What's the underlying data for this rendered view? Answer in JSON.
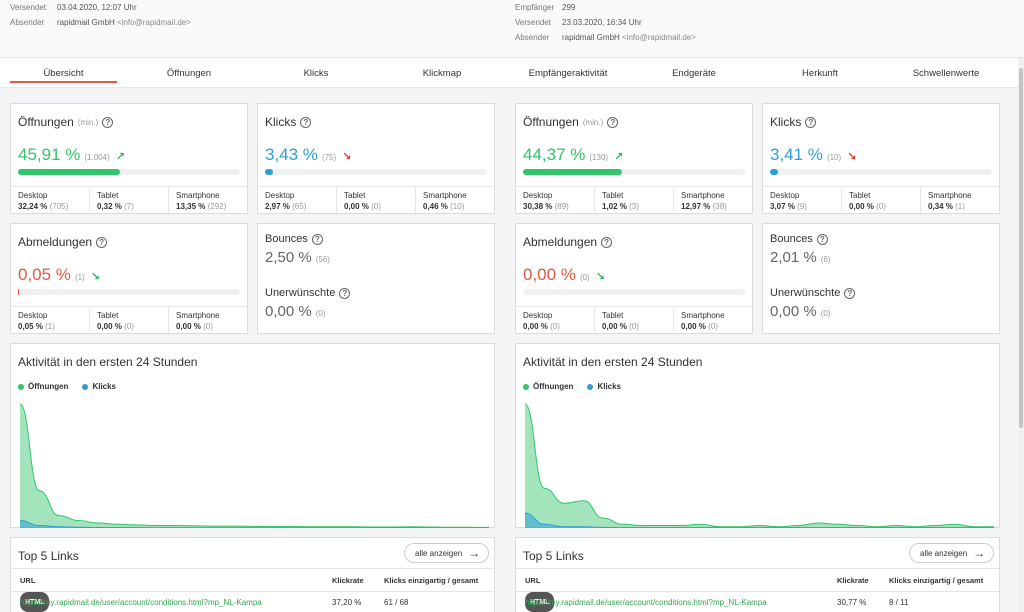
{
  "header": {
    "left": {
      "versendet_label": "Versendet",
      "versendet_value": "03.04.2020, 12:07 Uhr",
      "absender_label": "Absender",
      "absender_name": "rapidmail GmbH",
      "absender_email": "<info@rapidmail.de>"
    },
    "right": {
      "empfaenger_label": "Empfänger",
      "empfaenger_value": "299",
      "versendet_label": "Versendet",
      "versendet_value": "23.03.2020, 16:34 Uhr",
      "absender_label": "Absender",
      "absender_name": "rapidmail GmbH",
      "absender_email": "<info@rapidmail.de>"
    }
  },
  "tabs": [
    {
      "label": "Übersicht",
      "active": true
    },
    {
      "label": "Öffnungen"
    },
    {
      "label": "Klicks"
    },
    {
      "label": "Klickmap"
    },
    {
      "label": "Empfängeraktivität"
    },
    {
      "label": "Endgeräte"
    },
    {
      "label": "Herkunft"
    },
    {
      "label": "Schwellenwerte"
    }
  ],
  "colors": {
    "open": "#32c46a",
    "click": "#2e9fd6",
    "unsub": "#e9563e",
    "accent": "#e2574c"
  },
  "icons": {
    "help": "question-circle-icon",
    "up": "arrow-up-right-icon",
    "down": "arrow-down-right-icon",
    "button": "arrow-right-icon"
  },
  "left": {
    "oeffnungen": {
      "title": "Öffnungen",
      "min": "(min.)",
      "value": "45,91 %",
      "count": "(1.004)",
      "trend": "↗",
      "bar_fraction": 0.4591,
      "devices": [
        {
          "label": "Desktop",
          "value": "32,24 %",
          "count": "(705)"
        },
        {
          "label": "Tablet",
          "value": "0,32 %",
          "count": "(7)"
        },
        {
          "label": "Smartphone",
          "value": "13,35 %",
          "count": "(292)"
        }
      ]
    },
    "klicks": {
      "title": "Klicks",
      "value": "3,43 %",
      "count": "(75)",
      "trend": "↘",
      "bar_fraction": 0.0343,
      "devices": [
        {
          "label": "Desktop",
          "value": "2,97 %",
          "count": "(65)"
        },
        {
          "label": "Tablet",
          "value": "0,00 %",
          "count": "(0)"
        },
        {
          "label": "Smartphone",
          "value": "0,46 %",
          "count": "(10)"
        }
      ]
    },
    "abmeldungen": {
      "title": "Abmeldungen",
      "value": "0,05 %",
      "count": "(1)",
      "trend": "↘",
      "bar_fraction": 0.0005,
      "devices": [
        {
          "label": "Desktop",
          "value": "0,05 %",
          "count": "(1)"
        },
        {
          "label": "Tablet",
          "value": "0,00 %",
          "count": "(0)"
        },
        {
          "label": "Smartphone",
          "value": "0,00 %",
          "count": "(0)"
        }
      ]
    },
    "bounces": {
      "title": "Bounces",
      "value": "2,50 %",
      "count": "(56)"
    },
    "unerwuenschte": {
      "title": "Unerwünschte",
      "value": "0,00 %",
      "count": "(0)"
    },
    "aktivitaet": {
      "title": "Aktivität in den ersten 24 Stunden",
      "legend_open": "Öffnungen",
      "legend_click": "Klicks"
    },
    "links": {
      "title": "Top 5 Links",
      "button": "alle anzeigen",
      "headers": {
        "url": "URL",
        "rate": "Klickrate",
        "clicks": "Klicks einzigartig / gesamt"
      },
      "rows": [
        {
          "type": "HTML",
          "url": "https://my.rapidmail.de/user/account/conditions.html?mp_NL-Kampa",
          "rate": "37,20 %",
          "clicks": "61 / 68"
        }
      ]
    }
  },
  "right": {
    "oeffnungen": {
      "title": "Öffnungen",
      "min": "(min.)",
      "value": "44,37 %",
      "count": "(130)",
      "trend": "↗",
      "bar_fraction": 0.4437,
      "devices": [
        {
          "label": "Desktop",
          "value": "30,38 %",
          "count": "(89)"
        },
        {
          "label": "Tablet",
          "value": "1,02 %",
          "count": "(3)"
        },
        {
          "label": "Smartphone",
          "value": "12,97 %",
          "count": "(38)"
        }
      ]
    },
    "klicks": {
      "title": "Klicks",
      "value": "3,41 %",
      "count": "(10)",
      "trend": "↘",
      "bar_fraction": 0.0341,
      "devices": [
        {
          "label": "Desktop",
          "value": "3,07 %",
          "count": "(9)"
        },
        {
          "label": "Tablet",
          "value": "0,00 %",
          "count": "(0)"
        },
        {
          "label": "Smartphone",
          "value": "0,34 %",
          "count": "(1)"
        }
      ]
    },
    "abmeldungen": {
      "title": "Abmeldungen",
      "value": "0,00 %",
      "count": "(0)",
      "trend": "↘",
      "bar_fraction": 0.0,
      "devices": [
        {
          "label": "Desktop",
          "value": "0,00 %",
          "count": "(0)"
        },
        {
          "label": "Tablet",
          "value": "0,00 %",
          "count": "(0)"
        },
        {
          "label": "Smartphone",
          "value": "0,00 %",
          "count": "(0)"
        }
      ]
    },
    "bounces": {
      "title": "Bounces",
      "value": "2,01 %",
      "count": "(6)"
    },
    "unerwuenschte": {
      "title": "Unerwünschte",
      "value": "0,00 %",
      "count": "(0)"
    },
    "aktivitaet": {
      "title": "Aktivität in den ersten 24 Stunden",
      "legend_open": "Öffnungen",
      "legend_click": "Klicks"
    },
    "links": {
      "title": "Top 5 Links",
      "button": "alle anzeigen",
      "headers": {
        "url": "URL",
        "rate": "Klickrate",
        "clicks": "Klicks einzigartig / gesamt"
      },
      "rows": [
        {
          "type": "HTML",
          "url": "https://my.rapidmail.de/user/account/conditions.html?mp_NL-Kampa",
          "rate": "30,77 %",
          "clicks": "8 / 11"
        }
      ]
    }
  },
  "chart_data": [
    {
      "type": "area",
      "x": [
        0,
        1,
        2,
        3,
        4,
        5,
        6,
        7,
        8,
        9,
        10,
        11,
        12,
        13,
        14,
        15,
        16,
        17,
        18,
        19,
        20,
        21,
        22,
        23,
        24
      ],
      "series": [
        {
          "name": "Öffnungen",
          "values": [
            100,
            30,
            10,
            6,
            4,
            3,
            2.5,
            2,
            2,
            1.8,
            1.5,
            1.5,
            1.3,
            1.2,
            1.2,
            1,
            1,
            1,
            0.8,
            0.8,
            1,
            0.8,
            0.6,
            0.6,
            0.5
          ]
        },
        {
          "name": "Klicks",
          "values": [
            6,
            2,
            1,
            0.6,
            0.4,
            0.3,
            0.3,
            0.2,
            0.2,
            0.2,
            0.2,
            0.2,
            0.2,
            0.2,
            0.2,
            0.2,
            0.2,
            0.2,
            0.2,
            0.2,
            0.2,
            0.2,
            0.2,
            0.2,
            0.2
          ]
        }
      ]
    },
    {
      "type": "area",
      "x": [
        0,
        1,
        2,
        3,
        4,
        5,
        6,
        7,
        8,
        9,
        10,
        11,
        12,
        13,
        14,
        15,
        16,
        17,
        18,
        19,
        20,
        21,
        22,
        23,
        24
      ],
      "series": [
        {
          "name": "Öffnungen",
          "values": [
            100,
            32,
            20,
            22,
            8,
            3,
            2,
            2,
            2,
            3,
            1,
            1,
            2,
            1,
            2,
            4,
            3,
            2,
            1,
            2,
            1,
            2,
            3,
            1,
            1
          ]
        },
        {
          "name": "Klicks",
          "values": [
            12,
            3,
            1,
            1,
            0.5,
            0.3,
            0.3,
            0.3,
            0.3,
            0.3,
            0.3,
            0.3,
            0.3,
            0.3,
            0.3,
            0.3,
            0.3,
            0.3,
            0.3,
            0.3,
            0.3,
            0.3,
            0.3,
            0.3,
            0.3
          ]
        }
      ]
    }
  ]
}
